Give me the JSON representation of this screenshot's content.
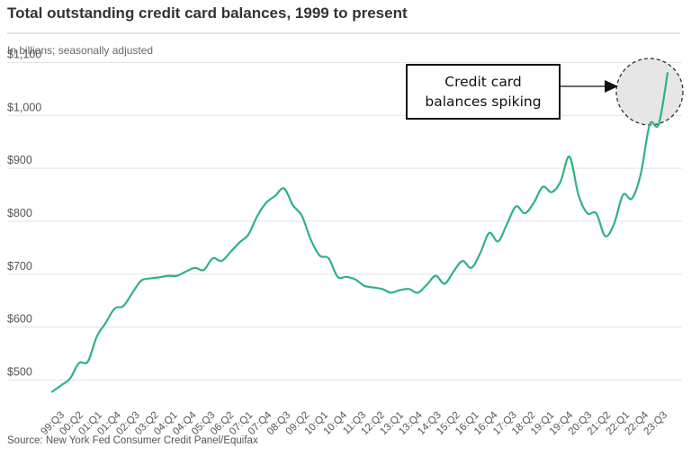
{
  "chart_data": {
    "type": "line",
    "title": "Total outstanding credit card balances, 1999 to present",
    "subtitle": "In billions; seasonally adjusted",
    "source": "Source: New York Fed Consumer Credit Panel/Equifax",
    "xlabel": "",
    "ylabel": "",
    "ylim": [
      450,
      1150
    ],
    "y_ticks": [
      500,
      600,
      700,
      800,
      900,
      1000,
      1100
    ],
    "y_tick_labels": [
      "$500",
      "$600",
      "$700",
      "$800",
      "$900",
      "$1,000",
      "$1,100"
    ],
    "x_tick_labels": [
      "99:Q3",
      "00:Q2",
      "01:Q1",
      "01:Q4",
      "02:Q3",
      "03:Q2",
      "04:Q1",
      "04:Q4",
      "05:Q3",
      "06:Q2",
      "07:Q1",
      "07:Q4",
      "08:Q3",
      "09:Q2",
      "10:Q1",
      "10:Q4",
      "11:Q3",
      "12:Q2",
      "13:Q1",
      "13:Q4",
      "14:Q3",
      "15:Q2",
      "16:Q1",
      "16:Q4",
      "17:Q3",
      "18:Q2",
      "19:Q1",
      "19:Q4",
      "20:Q3",
      "21:Q2",
      "22:Q1",
      "22:Q4",
      "23:Q3"
    ],
    "grid": true,
    "line_color": "#2fb37f",
    "series": [
      {
        "values": [
          478,
          490,
          503,
          532,
          535,
          582,
          608,
          635,
          640,
          665,
          688,
          692,
          694,
          697,
          697,
          705,
          712,
          708,
          730,
          725,
          742,
          760,
          775,
          810,
          835,
          848,
          862,
          830,
          810,
          765,
          735,
          730,
          695,
          695,
          690,
          678,
          675,
          672,
          665,
          670,
          672,
          665,
          680,
          697,
          682,
          705,
          725,
          712,
          740,
          778,
          762,
          795,
          828,
          815,
          835,
          865,
          855,
          875,
          922,
          850,
          815,
          815,
          772,
          795,
          850,
          843,
          890,
          983,
          983,
          1080
        ]
      }
    ],
    "annotations": [
      {
        "text": "Credit card balances spiking",
        "target": "23:Q3"
      }
    ]
  }
}
